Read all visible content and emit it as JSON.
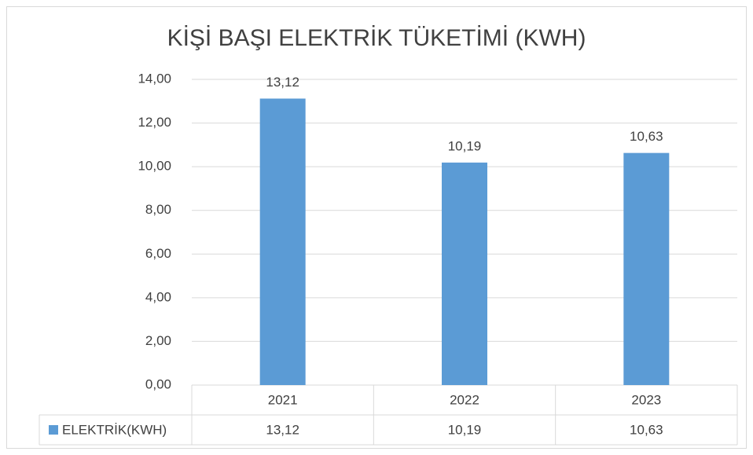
{
  "chart_data": {
    "type": "bar",
    "title": "KİŞİ BAŞI ELEKTRİK TÜKETİMİ (KWH)",
    "categories": [
      "2021",
      "2022",
      "2023"
    ],
    "series": [
      {
        "name": "ELEKTRİK(KWH)",
        "color": "#5b9bd5",
        "values": [
          13.12,
          10.19,
          10.63
        ],
        "value_labels": [
          "13,12",
          "10,19",
          "10,63"
        ]
      }
    ],
    "ylim": [
      0,
      14
    ],
    "yticks": [
      {
        "value": 0,
        "label": "0,00"
      },
      {
        "value": 2,
        "label": "2,00"
      },
      {
        "value": 4,
        "label": "4,00"
      },
      {
        "value": 6,
        "label": "6,00"
      },
      {
        "value": 8,
        "label": "8,00"
      },
      {
        "value": 10,
        "label": "10,00"
      },
      {
        "value": 12,
        "label": "12,00"
      },
      {
        "value": 14,
        "label": "14,00"
      }
    ],
    "grid": true,
    "data_table": true
  }
}
